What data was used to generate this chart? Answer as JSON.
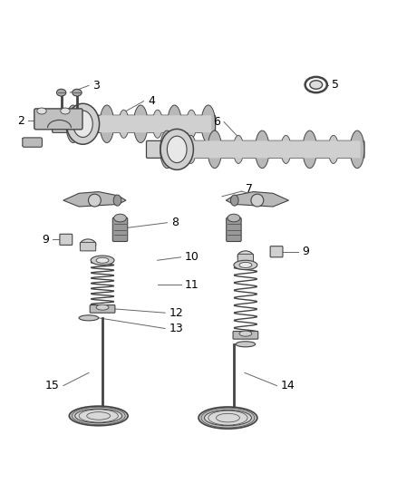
{
  "bg_color": "#ffffff",
  "line_color": "#555555",
  "dgray": "#444444",
  "mgray": "#888888",
  "lgray": "#cccccc",
  "figsize": [
    4.38,
    5.33
  ],
  "dpi": 100,
  "label_fontsize": 9
}
